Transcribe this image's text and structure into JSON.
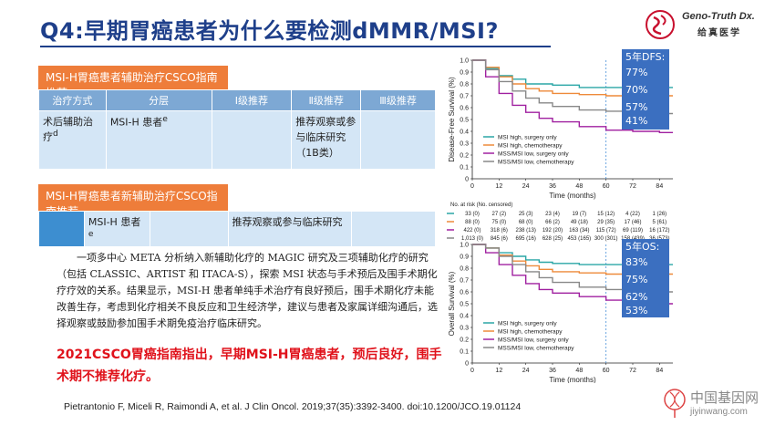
{
  "title": "Q4:早期胃癌患者为什么要检测dMMR/MSI?",
  "logo": {
    "name": "Geno-Truth Dx.",
    "sub": "给真医学"
  },
  "table1": {
    "banner": "MSI-H胃癌患者辅助治疗CSCO指南推荐",
    "headers": [
      "治疗方式",
      "分层",
      "Ⅰ级推荐",
      "Ⅱ级推荐",
      "Ⅲ级推荐"
    ],
    "row": [
      "术后辅助治疗",
      "MSI-H 患者",
      "",
      "推荐观察或参与临床研究（1B类）",
      ""
    ],
    "row_sup1": "d",
    "row_sup2": "e"
  },
  "table2": {
    "banner": "MSI-H胃癌患者新辅助治疗CSCO指南推荐",
    "row": [
      "",
      "MSI-H 患者",
      "",
      "推荐观察或参与临床研究",
      ""
    ],
    "row_sup": "e"
  },
  "paragraph": "一项多中心 META 分析纳入新辅助化疗的 MAGIC 研究及三项辅助化疗的研究（包括 CLASSIC、ARTIST 和 ITACA-S），探索 MSI 状态与手术预后及围手术期化疗疗效的关系。结果显示，MSI-H 患者单纯手术治疗有良好预后，围手术期化疗未能改善生存，考虑到化疗相关不良反应和卫生经济学，建议与患者及家属详细沟通后，选择观察或鼓励参加围手术期免疫治疗临床研究。",
  "red_note": "2021CSCO胃癌指南指出，早期MSI-H胃癌患者，预后良好，围手术期不推荐化疗。",
  "citation": "Pietrantonio F, Miceli R, Raimondi A, et al. J Clin Oncol. 2019;37(35):3392-3400. doi:10.1200/JCO.19.01124",
  "dfs_box": {
    "label": "5年DFS:",
    "values": [
      "77%",
      "70%",
      "57%",
      "41%"
    ]
  },
  "os_box": {
    "label": "5年OS:",
    "values": [
      "83%",
      "75%",
      "62%",
      "53%"
    ]
  },
  "at_risk": {
    "header": "No. at risk (No. censored)",
    "rows": [
      [
        "33 (0)",
        "27 (2)",
        "25 (3)",
        "23 (4)",
        "19 (7)",
        "15 (12)",
        "4 (22)",
        "1 (26)"
      ],
      [
        "88 (0)",
        "75 (0)",
        "68 (0)",
        "66 (2)",
        "49 (18)",
        "29 (35)",
        "17 (46)",
        "5 (61)"
      ],
      [
        "422 (0)",
        "318 (6)",
        "238 (13)",
        "192 (20)",
        "163 (34)",
        "115 (72)",
        "69 (119)",
        "16 (172)"
      ],
      [
        "1,013 (0)",
        "845 (6)",
        "695 (16)",
        "628 (25)",
        "453 (165)",
        "300 (301)",
        "158 (439)",
        "36 (573)"
      ]
    ]
  },
  "watermark": {
    "cn": "中国基因网",
    "url": "jiyinwang.com"
  },
  "chart_data": [
    {
      "type": "line",
      "ylabel": "Disease-Free Survival (%)",
      "xlabel": "Time (months)",
      "xlim": [
        0,
        90
      ],
      "ylim": [
        0,
        1.0
      ],
      "xticks": [
        "0",
        "12",
        "24",
        "36",
        "48",
        "60",
        "72",
        "84"
      ],
      "yticks": [
        "0",
        "0.1",
        "0.2",
        "0.3",
        "0.4",
        "0.5",
        "0.6",
        "0.7",
        "0.8",
        "0.9",
        "1.0"
      ],
      "series": [
        {
          "name": "MSI high, surgery only",
          "color": "#2aa6a6",
          "x": [
            0,
            6,
            12,
            18,
            24,
            30,
            36,
            48,
            60,
            72,
            84
          ],
          "y": [
            1.0,
            0.93,
            0.87,
            0.84,
            0.8,
            0.8,
            0.79,
            0.77,
            0.77,
            0.77,
            0.77
          ]
        },
        {
          "name": "MSI high, chemotherapy",
          "color": "#ee8a3a",
          "x": [
            0,
            6,
            12,
            18,
            24,
            30,
            36,
            48,
            60,
            72,
            84
          ],
          "y": [
            1.0,
            0.94,
            0.86,
            0.8,
            0.76,
            0.74,
            0.72,
            0.71,
            0.7,
            0.7,
            0.7
          ]
        },
        {
          "name": "MSS/MSI low, surgery only",
          "color": "#a020a0",
          "x": [
            0,
            6,
            12,
            18,
            24,
            30,
            36,
            48,
            60,
            72,
            84
          ],
          "y": [
            1.0,
            0.86,
            0.72,
            0.62,
            0.56,
            0.51,
            0.48,
            0.44,
            0.41,
            0.4,
            0.39
          ]
        },
        {
          "name": "MSS/MSI low, chemotherapy",
          "color": "#888888",
          "x": [
            0,
            6,
            12,
            18,
            24,
            30,
            36,
            48,
            60,
            72,
            84
          ],
          "y": [
            1.0,
            0.92,
            0.82,
            0.74,
            0.68,
            0.64,
            0.61,
            0.58,
            0.57,
            0.56,
            0.55
          ]
        }
      ]
    },
    {
      "type": "line",
      "ylabel": "Overall Survival (%)",
      "xlabel": "Time (months)",
      "xlim": [
        0,
        90
      ],
      "ylim": [
        0,
        1.0
      ],
      "xticks": [
        "0",
        "12",
        "24",
        "36",
        "48",
        "60",
        "72",
        "84"
      ],
      "yticks": [
        "0",
        "0.1",
        "0.2",
        "0.3",
        "0.4",
        "0.5",
        "0.6",
        "0.7",
        "0.8",
        "0.9",
        "1.0"
      ],
      "series": [
        {
          "name": "MSI high, surgery only",
          "color": "#2aa6a6",
          "x": [
            0,
            6,
            12,
            18,
            24,
            30,
            36,
            48,
            60,
            72,
            84
          ],
          "y": [
            1.0,
            0.97,
            0.93,
            0.9,
            0.87,
            0.85,
            0.84,
            0.83,
            0.83,
            0.83,
            0.83
          ]
        },
        {
          "name": "MSI high, chemotherapy",
          "color": "#ee8a3a",
          "x": [
            0,
            6,
            12,
            18,
            24,
            30,
            36,
            48,
            60,
            72,
            84
          ],
          "y": [
            1.0,
            0.97,
            0.91,
            0.86,
            0.82,
            0.79,
            0.77,
            0.76,
            0.75,
            0.75,
            0.75
          ]
        },
        {
          "name": "MSS/MSI low, surgery only",
          "color": "#a020a0",
          "x": [
            0,
            6,
            12,
            18,
            24,
            30,
            36,
            48,
            60,
            72,
            84
          ],
          "y": [
            1.0,
            0.93,
            0.83,
            0.74,
            0.67,
            0.62,
            0.59,
            0.56,
            0.53,
            0.51,
            0.5
          ]
        },
        {
          "name": "MSS/MSI low, chemotherapy",
          "color": "#888888",
          "x": [
            0,
            6,
            12,
            18,
            24,
            30,
            36,
            48,
            60,
            72,
            84
          ],
          "y": [
            1.0,
            0.97,
            0.9,
            0.83,
            0.77,
            0.72,
            0.68,
            0.64,
            0.62,
            0.61,
            0.6
          ]
        }
      ]
    }
  ]
}
